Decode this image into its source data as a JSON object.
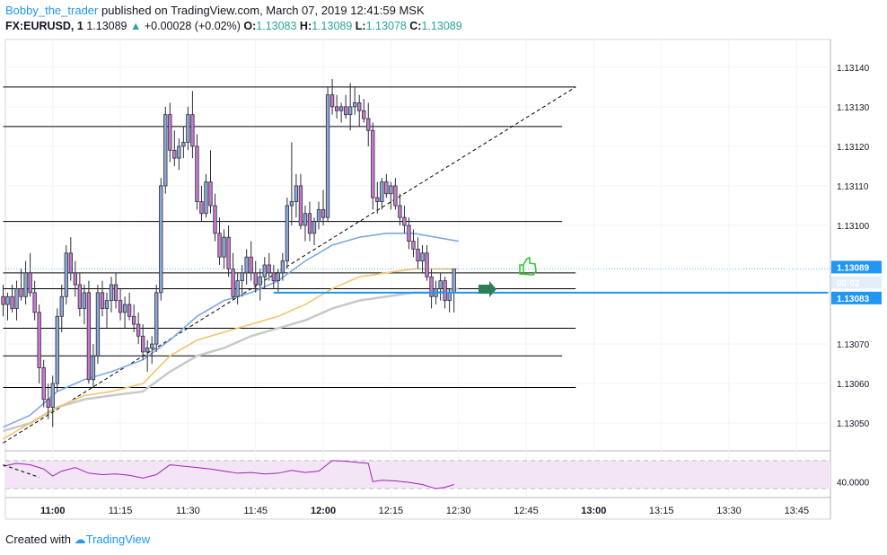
{
  "header": {
    "author": "Bobby_the_trader",
    "published": "published on TradingView.com, March 07, 2019 12:41:59 MSK",
    "symbol": "FX:EURUSD, 1",
    "last": "1.13089",
    "change": "+0.00028 (+0.02%)",
    "o_label": "O:",
    "o_value": "1.13083",
    "h_label": "H:",
    "h_value": "1.13089",
    "l_label": "L:",
    "l_value": "1.13078",
    "c_label": "C:",
    "c_value": "1.13089"
  },
  "footer": {
    "created_with": "Created with",
    "brand": "TradingView"
  },
  "colors": {
    "bull": "#8fa8d8",
    "bear": "#c87ad0",
    "outline": "#2a2e39",
    "ma_fast": "#7ea9e1",
    "ma_mid": "#f2c46d",
    "ma_slow": "#c9c9c9",
    "rsi_line": "#9c27b0",
    "rsi_band": "#f3e5f5",
    "price_tag": "#2196f3",
    "trend": "#000000"
  },
  "chart_data": {
    "type": "candlestick",
    "symbol": "FX:EURUSD",
    "interval": "1",
    "y_ticks": [
      "1.13140",
      "1.13130",
      "1.13120",
      "1.13110",
      "1.13100",
      "1.13070",
      "1.13060",
      "1.13050"
    ],
    "ylim": [
      1.13043,
      1.13147
    ],
    "x_ticks": [
      "11:00",
      "11:15",
      "11:30",
      "11:45",
      "12:00",
      "12:15",
      "12:30",
      "12:45",
      "13:00",
      "13:15",
      "13:30",
      "13:45"
    ],
    "x_tick_minutes": [
      660,
      675,
      690,
      705,
      720,
      735,
      750,
      765,
      780,
      795,
      810,
      825
    ],
    "xlim_minutes": [
      649.5,
      832.5
    ],
    "price_tags": [
      {
        "label": "1.13089",
        "value": 1.13089
      },
      {
        "label": "00:02",
        "value": 1.13084
      },
      {
        "label": "1.13083",
        "value": 1.13083
      }
    ],
    "candles": [
      [
        649,
        1.13082,
        1.13085,
        1.13077,
        1.1308
      ],
      [
        650,
        1.1308,
        1.13083,
        1.13076,
        1.13082
      ],
      [
        651,
        1.13082,
        1.13085,
        1.13078,
        1.13079
      ],
      [
        652,
        1.13079,
        1.13086,
        1.13076,
        1.13084
      ],
      [
        653,
        1.13084,
        1.13089,
        1.13081,
        1.13082
      ],
      [
        654,
        1.13082,
        1.13091,
        1.1308,
        1.13088
      ],
      [
        655,
        1.13088,
        1.13093,
        1.13082,
        1.13083
      ],
      [
        656,
        1.13083,
        1.13086,
        1.13076,
        1.13078
      ],
      [
        657,
        1.13078,
        1.1308,
        1.1306,
        1.13064
      ],
      [
        658,
        1.13064,
        1.13066,
        1.13054,
        1.13056
      ],
      [
        659,
        1.13056,
        1.1306,
        1.13051,
        1.13054
      ],
      [
        660,
        1.13054,
        1.13062,
        1.13049,
        1.1306
      ],
      [
        661,
        1.1306,
        1.13079,
        1.13058,
        1.13077
      ],
      [
        662,
        1.13077,
        1.13085,
        1.13073,
        1.13082
      ],
      [
        663,
        1.13082,
        1.13095,
        1.1308,
        1.13093
      ],
      [
        664,
        1.13093,
        1.13097,
        1.13086,
        1.13088
      ],
      [
        665,
        1.13088,
        1.13091,
        1.13082,
        1.13085
      ],
      [
        666,
        1.13085,
        1.13088,
        1.13077,
        1.13079
      ],
      [
        667,
        1.13079,
        1.13085,
        1.13075,
        1.13083
      ],
      [
        668,
        1.13083,
        1.13086,
        1.1306,
        1.13061
      ],
      [
        669,
        1.13061,
        1.1307,
        1.13059,
        1.13067
      ],
      [
        670,
        1.13067,
        1.13085,
        1.13065,
        1.13083
      ],
      [
        671,
        1.13083,
        1.13086,
        1.13077,
        1.13079
      ],
      [
        672,
        1.13079,
        1.13083,
        1.13074,
        1.13081
      ],
      [
        673,
        1.13081,
        1.13087,
        1.13078,
        1.13085
      ],
      [
        674,
        1.13085,
        1.13088,
        1.13079,
        1.13081
      ],
      [
        675,
        1.13081,
        1.13084,
        1.13076,
        1.13078
      ],
      [
        676,
        1.13078,
        1.13082,
        1.13074,
        1.1308
      ],
      [
        677,
        1.1308,
        1.13083,
        1.13076,
        1.13077
      ],
      [
        678,
        1.13077,
        1.1308,
        1.13073,
        1.13075
      ],
      [
        679,
        1.13075,
        1.13078,
        1.1307,
        1.13072
      ],
      [
        680,
        1.13072,
        1.13075,
        1.13066,
        1.13068
      ],
      [
        681,
        1.13068,
        1.13071,
        1.13063,
        1.13069
      ],
      [
        682,
        1.13069,
        1.13072,
        1.13065,
        1.1307
      ],
      [
        683,
        1.1307,
        1.13085,
        1.13068,
        1.13083
      ],
      [
        684,
        1.13083,
        1.13112,
        1.13081,
        1.1311
      ],
      [
        685,
        1.1311,
        1.1313,
        1.13108,
        1.13128
      ],
      [
        686,
        1.13128,
        1.13131,
        1.13116,
        1.13119
      ],
      [
        687,
        1.13119,
        1.13124,
        1.13115,
        1.13117
      ],
      [
        688,
        1.13117,
        1.13122,
        1.13114,
        1.1312
      ],
      [
        689,
        1.1312,
        1.13125,
        1.13117,
        1.13121
      ],
      [
        690,
        1.13121,
        1.1313,
        1.13119,
        1.13128
      ],
      [
        691,
        1.13128,
        1.13134,
        1.13117,
        1.1312
      ],
      [
        692,
        1.1312,
        1.13123,
        1.13104,
        1.13106
      ],
      [
        693,
        1.13106,
        1.1311,
        1.13101,
        1.13103
      ],
      [
        694,
        1.13103,
        1.13113,
        1.13102,
        1.13111
      ],
      [
        695,
        1.13111,
        1.13119,
        1.13103,
        1.13105
      ],
      [
        696,
        1.13105,
        1.13108,
        1.13096,
        1.13098
      ],
      [
        697,
        1.13098,
        1.13102,
        1.1309,
        1.13092
      ],
      [
        698,
        1.13092,
        1.13099,
        1.13089,
        1.13097
      ],
      [
        699,
        1.13097,
        1.131,
        1.13087,
        1.13089
      ],
      [
        700,
        1.13089,
        1.13093,
        1.13081,
        1.13082
      ],
      [
        701,
        1.13082,
        1.13088,
        1.1308,
        1.13086
      ],
      [
        702,
        1.13086,
        1.1309,
        1.13082,
        1.13088
      ],
      [
        703,
        1.13088,
        1.13094,
        1.13085,
        1.13092
      ],
      [
        704,
        1.13092,
        1.13096,
        1.13086,
        1.13088
      ],
      [
        705,
        1.13088,
        1.13091,
        1.13083,
        1.13085
      ],
      [
        706,
        1.13085,
        1.13089,
        1.13081,
        1.13087
      ],
      [
        707,
        1.13087,
        1.13092,
        1.13084,
        1.1309
      ],
      [
        708,
        1.1309,
        1.13093,
        1.13086,
        1.13088
      ],
      [
        709,
        1.13088,
        1.1309,
        1.13084,
        1.13086
      ],
      [
        710,
        1.13086,
        1.13089,
        1.13083,
        1.13088
      ],
      [
        711,
        1.13088,
        1.13093,
        1.13086,
        1.13091
      ],
      [
        712,
        1.13091,
        1.13107,
        1.13089,
        1.13105
      ],
      [
        713,
        1.13105,
        1.13121,
        1.131,
        1.13106
      ],
      [
        714,
        1.13106,
        1.13113,
        1.13102,
        1.1311
      ],
      [
        715,
        1.1311,
        1.13113,
        1.13099,
        1.131
      ],
      [
        716,
        1.131,
        1.13105,
        1.13096,
        1.13103
      ],
      [
        717,
        1.13103,
        1.13106,
        1.13096,
        1.13098
      ],
      [
        718,
        1.13098,
        1.13102,
        1.13095,
        1.13101
      ],
      [
        719,
        1.13101,
        1.13106,
        1.13099,
        1.13104
      ],
      [
        720,
        1.13104,
        1.13109,
        1.131,
        1.13102
      ],
      [
        721,
        1.13102,
        1.13135,
        1.13101,
        1.13133
      ],
      [
        722,
        1.13133,
        1.13137,
        1.13128,
        1.1313
      ],
      [
        723,
        1.1313,
        1.13133,
        1.13127,
        1.13129
      ],
      [
        724,
        1.13129,
        1.13131,
        1.13126,
        1.1313
      ],
      [
        725,
        1.1313,
        1.13133,
        1.13127,
        1.13128
      ],
      [
        726,
        1.13128,
        1.13136,
        1.13124,
        1.1313
      ],
      [
        727,
        1.1313,
        1.13135,
        1.13128,
        1.13131
      ],
      [
        728,
        1.13131,
        1.13133,
        1.13125,
        1.13129
      ],
      [
        729,
        1.13129,
        1.13132,
        1.13126,
        1.13127
      ],
      [
        730,
        1.13127,
        1.13131,
        1.1312,
        1.13124
      ],
      [
        731,
        1.13124,
        1.13126,
        1.13104,
        1.13107
      ],
      [
        732,
        1.13107,
        1.13111,
        1.13103,
        1.13106
      ],
      [
        733,
        1.13106,
        1.13112,
        1.13104,
        1.13111
      ],
      [
        734,
        1.13111,
        1.13113,
        1.13107,
        1.13108
      ],
      [
        735,
        1.13108,
        1.13111,
        1.13104,
        1.1311
      ],
      [
        736,
        1.1311,
        1.13112,
        1.13104,
        1.13105
      ],
      [
        737,
        1.13105,
        1.13108,
        1.131,
        1.13102
      ],
      [
        738,
        1.13102,
        1.13105,
        1.13098,
        1.131
      ],
      [
        739,
        1.131,
        1.13102,
        1.13094,
        1.13096
      ],
      [
        740,
        1.13096,
        1.13099,
        1.13092,
        1.13094
      ],
      [
        741,
        1.13094,
        1.13097,
        1.13089,
        1.13091
      ],
      [
        742,
        1.13091,
        1.13095,
        1.13088,
        1.13093
      ],
      [
        743,
        1.13093,
        1.13095,
        1.13086,
        1.13087
      ],
      [
        744,
        1.13087,
        1.13089,
        1.13079,
        1.13082
      ],
      [
        745,
        1.13082,
        1.13086,
        1.1308,
        1.13084
      ],
      [
        746,
        1.13084,
        1.13088,
        1.13081,
        1.13086
      ],
      [
        747,
        1.13086,
        1.13087,
        1.13079,
        1.13081
      ],
      [
        748,
        1.13081,
        1.13084,
        1.13078,
        1.13083
      ],
      [
        749,
        1.13083,
        1.13089,
        1.13078,
        1.13089
      ]
    ],
    "ma_fast": [
      [
        649,
        1.13049
      ],
      [
        655,
        1.13052
      ],
      [
        661,
        1.13058
      ],
      [
        667,
        1.13061
      ],
      [
        673,
        1.13063
      ],
      [
        680,
        1.13066
      ],
      [
        686,
        1.13071
      ],
      [
        692,
        1.13077
      ],
      [
        698,
        1.13081
      ],
      [
        704,
        1.13083
      ],
      [
        710,
        1.13086
      ],
      [
        716,
        1.13091
      ],
      [
        722,
        1.13095
      ],
      [
        728,
        1.13097
      ],
      [
        734,
        1.13098
      ],
      [
        740,
        1.13098
      ],
      [
        745,
        1.13097
      ],
      [
        750,
        1.13096
      ]
    ],
    "ma_mid": [
      [
        649,
        1.13046
      ],
      [
        655,
        1.1305
      ],
      [
        661,
        1.13054
      ],
      [
        667,
        1.13057
      ],
      [
        673,
        1.13058
      ],
      [
        680,
        1.1306
      ],
      [
        686,
        1.13067
      ],
      [
        692,
        1.13071
      ],
      [
        698,
        1.13073
      ],
      [
        704,
        1.13075
      ],
      [
        710,
        1.13077
      ],
      [
        716,
        1.1308
      ],
      [
        722,
        1.13084
      ],
      [
        728,
        1.13087
      ],
      [
        734,
        1.13088
      ],
      [
        740,
        1.13089
      ],
      [
        745,
        1.13089
      ],
      [
        750,
        1.13089
      ]
    ],
    "ma_slow": [
      [
        649,
        1.13048
      ],
      [
        655,
        1.1305
      ],
      [
        661,
        1.13054
      ],
      [
        667,
        1.13056
      ],
      [
        673,
        1.13057
      ],
      [
        680,
        1.13058
      ],
      [
        686,
        1.13063
      ],
      [
        692,
        1.13067
      ],
      [
        698,
        1.13069
      ],
      [
        704,
        1.13072
      ],
      [
        710,
        1.13074
      ],
      [
        716,
        1.13076
      ],
      [
        722,
        1.13079
      ],
      [
        728,
        1.13081
      ],
      [
        734,
        1.13082
      ],
      [
        740,
        1.13083
      ],
      [
        745,
        1.13083
      ],
      [
        750,
        1.13084
      ]
    ],
    "h_lines": [
      {
        "value": 1.13135,
        "t_start": 649,
        "t_end": 776
      },
      {
        "value": 1.13125,
        "t_start": 649,
        "t_end": 773
      },
      {
        "value": 1.13101,
        "t_start": 649,
        "t_end": 773
      },
      {
        "value": 1.13088,
        "t_start": 649,
        "t_end": 776
      },
      {
        "value": 1.13084,
        "t_start": 649,
        "t_end": 776
      },
      {
        "value": 1.13074,
        "t_start": 649,
        "t_end": 776
      },
      {
        "value": 1.13067,
        "t_start": 649,
        "t_end": 773
      },
      {
        "value": 1.13059,
        "t_start": 649,
        "t_end": 776
      }
    ],
    "blue_line": {
      "value": 1.13083,
      "t_start": 709,
      "t_end": 832
    },
    "trend_line": {
      "t1": 649,
      "v1": 1.13045,
      "t2": 776,
      "v2": 1.13135
    },
    "trend_line_lower": {
      "t1": 649,
      "v1": 1.13044,
      "t2": 653,
      "v2": 1.13042
    },
    "rsi": {
      "tick": "40.0000",
      "band_top": 70,
      "band_bottom": 30,
      "level": 40,
      "ylim": [
        20,
        80
      ],
      "values": [
        [
          649,
          62
        ],
        [
          652,
          66
        ],
        [
          655,
          64
        ],
        [
          658,
          58
        ],
        [
          660,
          48
        ],
        [
          662,
          55
        ],
        [
          665,
          60
        ],
        [
          668,
          52
        ],
        [
          671,
          50
        ],
        [
          674,
          51
        ],
        [
          677,
          49
        ],
        [
          680,
          45
        ],
        [
          683,
          50
        ],
        [
          686,
          64
        ],
        [
          689,
          62
        ],
        [
          692,
          60
        ],
        [
          695,
          58
        ],
        [
          698,
          55
        ],
        [
          701,
          52
        ],
        [
          704,
          53
        ],
        [
          707,
          51
        ],
        [
          710,
          52
        ],
        [
          713,
          56
        ],
        [
          716,
          53
        ],
        [
          719,
          55
        ],
        [
          722,
          70
        ],
        [
          725,
          69
        ],
        [
          728,
          67
        ],
        [
          730,
          66
        ],
        [
          731,
          40
        ],
        [
          733,
          42
        ],
        [
          736,
          41
        ],
        [
          739,
          39
        ],
        [
          742,
          36
        ],
        [
          745,
          30
        ],
        [
          747,
          32
        ],
        [
          749,
          36
        ]
      ]
    }
  }
}
